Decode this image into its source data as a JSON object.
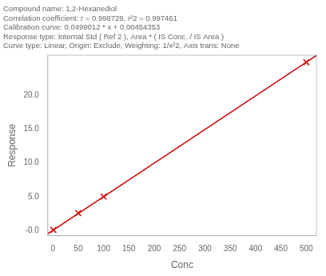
{
  "chart_data": {
    "type": "scatter",
    "title": [
      "Compound name: 1,2-Hexanediol",
      "Correlation coefficient: r = 0.998729, r²2 = 0.997461",
      "Calibration curve: 0.0499012 * x + 0.00454353",
      "Response type: Internal Std ( Ref 2 ), Area * ( IS Conc. / IS Area )",
      "Curve type: Linear, Origin: Exclude, Weighting: 1/x²2, Axis trans: None"
    ],
    "xlabel": "Conc",
    "ylabel": "Response",
    "series": [
      {
        "type": "line",
        "color": "#cc0000",
        "line_style": "solid",
        "x": [
          -10,
          520
        ],
        "values": [
          -0.49446847,
          25.95316753
        ]
      },
      {
        "type": "scatter",
        "color": "#cc0000",
        "marker": "x",
        "x": [
          1,
          50,
          100,
          500
        ],
        "values": [
          0.054,
          2.55,
          5.0,
          24.95
        ]
      }
    ],
    "xlim": [
      -10,
      520
    ],
    "ylim": [
      -0.8,
      26
    ],
    "xticks": [
      0,
      50,
      100,
      150,
      200,
      250,
      300,
      350,
      400,
      450,
      500
    ],
    "yticks": [
      {
        "value": -0.0,
        "label": "-0.0"
      },
      {
        "value": 5.0,
        "label": "5.0"
      },
      {
        "value": 10.0,
        "label": "10.0"
      },
      {
        "value": 15.0,
        "label": "15.0"
      },
      {
        "value": 20.0,
        "label": "20.0"
      }
    ],
    "grid": false
  }
}
